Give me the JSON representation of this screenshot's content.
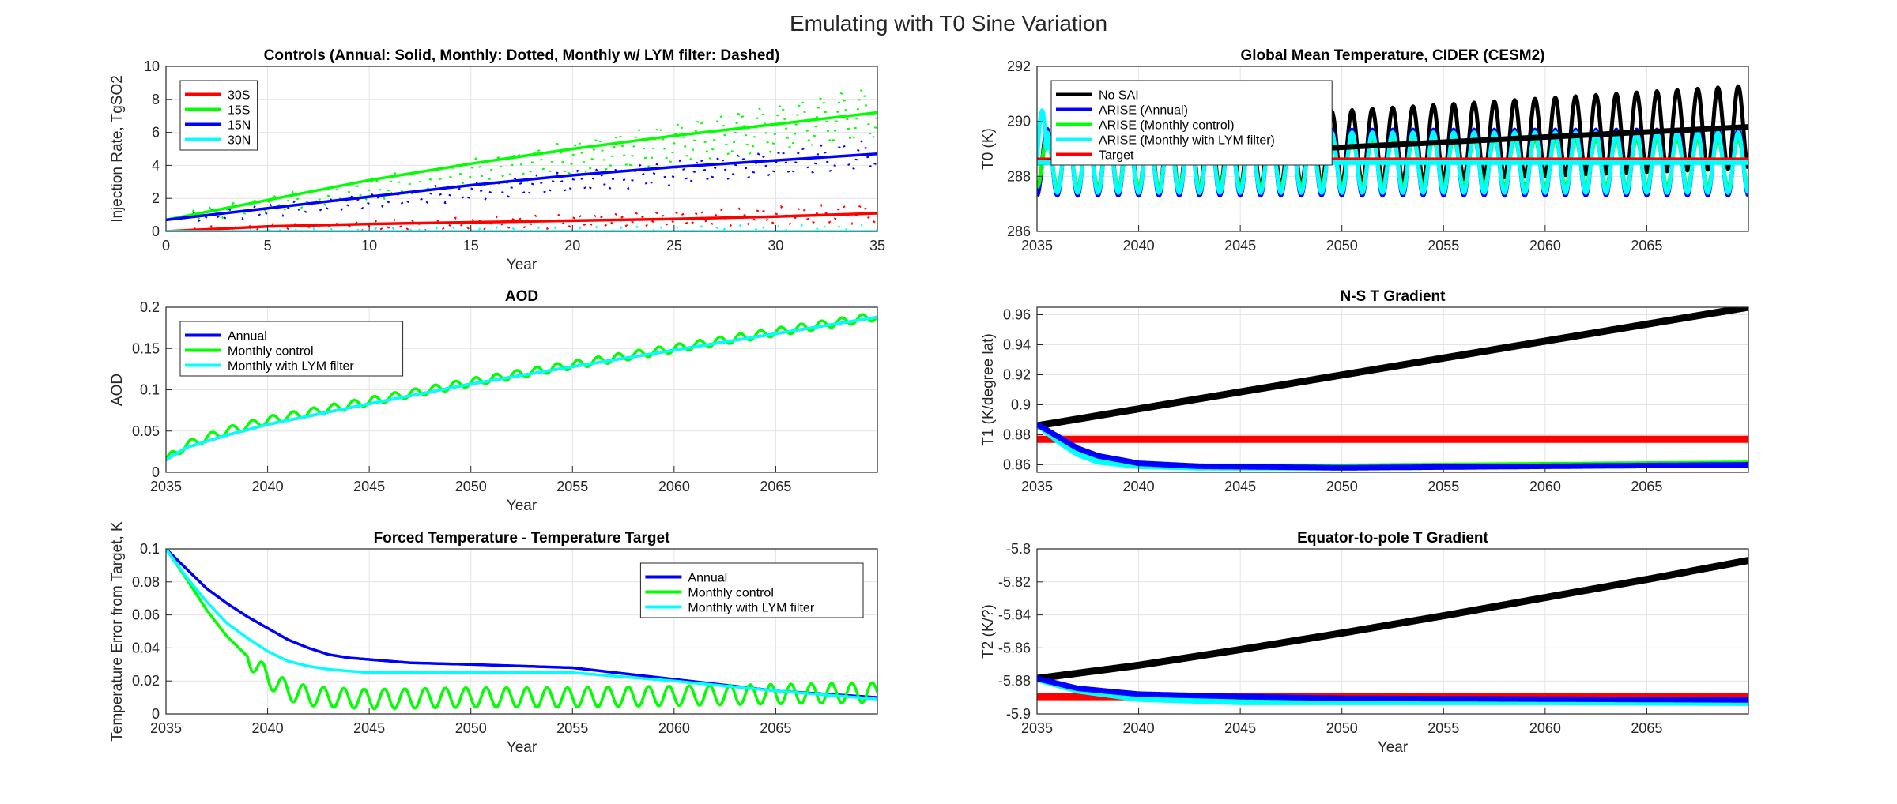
{
  "figure_title": "Emulating with T0 Sine Variation",
  "chart_data": [
    {
      "id": "controls",
      "type": "line",
      "title": "Controls (Annual: Solid, Monthly: Dotted, Monthly w/ LYM filter: Dashed)",
      "xlabel": "Year",
      "ylabel": "Injection Rate, TgSO2",
      "xlim": [
        0,
        35
      ],
      "ylim": [
        0,
        10
      ],
      "xticks": [
        0,
        5,
        10,
        15,
        20,
        25,
        30,
        35
      ],
      "yticks": [
        0,
        2,
        4,
        6,
        8,
        10
      ],
      "grid": true,
      "legend_position": "top-left",
      "legend_entries": [
        "30S",
        "15S",
        "15N",
        "30N"
      ],
      "series": [
        {
          "name": "30S",
          "color": "#ff0000",
          "style": "solid",
          "x": [
            0,
            5,
            10,
            15,
            20,
            25,
            30,
            35
          ],
          "y": [
            0.0,
            0.3,
            0.45,
            0.55,
            0.65,
            0.75,
            0.9,
            1.1
          ]
        },
        {
          "name": "15S",
          "color": "#00ff00",
          "style": "solid",
          "x": [
            0,
            5,
            10,
            15,
            20,
            25,
            30,
            35
          ],
          "y": [
            0.7,
            1.9,
            3.1,
            4.1,
            5.0,
            5.8,
            6.5,
            7.2
          ]
        },
        {
          "name": "15N",
          "color": "#0000ff",
          "style": "solid",
          "x": [
            0,
            5,
            10,
            15,
            20,
            25,
            30,
            35
          ],
          "y": [
            0.7,
            1.4,
            2.1,
            2.8,
            3.4,
            3.9,
            4.3,
            4.7
          ]
        },
        {
          "name": "30N",
          "color": "#00ffff",
          "style": "solid",
          "x": [
            0,
            35
          ],
          "y": [
            0.0,
            0.0
          ]
        },
        {
          "name": "15S",
          "color": "#00ff00",
          "style": "dotted",
          "x": [
            0,
            35
          ],
          "y_trend": [
            0.7,
            7.2
          ],
          "amplitude_trend": [
            0.3,
            1.6
          ]
        },
        {
          "name": "15N",
          "color": "#0000ff",
          "style": "dotted",
          "x": [
            0,
            35
          ],
          "y_trend": [
            0.7,
            4.7
          ],
          "amplitude_trend": [
            0.3,
            0.9
          ]
        },
        {
          "name": "30S",
          "color": "#ff0000",
          "style": "dotted",
          "x": [
            0,
            35
          ],
          "y_trend": [
            0.0,
            1.1
          ],
          "amplitude_trend": [
            0.2,
            0.6
          ]
        },
        {
          "name": "30N",
          "color": "#00ffff",
          "style": "dotted",
          "x": [
            0,
            35
          ],
          "y_trend": [
            0.0,
            0.1
          ],
          "amplitude_trend": [
            0.1,
            0.3
          ]
        }
      ]
    },
    {
      "id": "gmt",
      "type": "line",
      "title": "Global Mean Temperature, CIDER (CESM2)",
      "xlabel": "",
      "ylabel": "T0 (K)",
      "xlim": [
        2035,
        2070
      ],
      "ylim": [
        286,
        292
      ],
      "xticks": [
        2035,
        2040,
        2045,
        2050,
        2055,
        2060,
        2065
      ],
      "yticks": [
        286,
        288,
        290,
        292
      ],
      "grid": true,
      "legend_position": "top-left",
      "legend_entries": [
        "No SAI",
        "ARISE (Annual)",
        "ARISE (Monthly control)",
        "ARISE (Monthly with LYM filter)",
        "Target"
      ],
      "series": [
        {
          "name": "No SAI",
          "color": "#000000",
          "mean": [
            288.5,
            289.8
          ],
          "amplitude": [
            1.2,
            1.5
          ]
        },
        {
          "name": "ARISE (Annual)",
          "color": "#0000ff",
          "mean": [
            288.5,
            288.5
          ],
          "amplitude": [
            1.2,
            1.2
          ]
        },
        {
          "name": "ARISE (Monthly control)",
          "color": "#00ff00",
          "mean": [
            288.5,
            288.5
          ],
          "amplitude": [
            0.9,
            0.9
          ]
        },
        {
          "name": "ARISE (Monthly with LYM filter)",
          "color": "#00ffff",
          "mean": [
            288.5,
            288.5
          ],
          "amplitude": [
            1.1,
            1.1
          ],
          "start_peak": 290.4
        },
        {
          "name": "Target",
          "color": "#ff0000",
          "constant": 288.6
        }
      ]
    },
    {
      "id": "aod",
      "type": "line",
      "title": "AOD",
      "xlabel": "Year",
      "ylabel": "AOD",
      "xlim": [
        2035,
        2070
      ],
      "ylim": [
        0,
        0.2
      ],
      "xticks": [
        2035,
        2040,
        2045,
        2050,
        2055,
        2060,
        2065
      ],
      "yticks": [
        0,
        0.05,
        0.1,
        0.15,
        0.2
      ],
      "grid": true,
      "legend_position": "top-left",
      "legend_entries": [
        "Annual",
        "Monthly control",
        "Monthly with LYM filter"
      ],
      "series": [
        {
          "name": "Annual",
          "color": "#0000ff",
          "x": [
            2035,
            2036,
            2038,
            2040,
            2042,
            2045,
            2050,
            2055,
            2060,
            2065,
            2070
          ],
          "y": [
            0.015,
            0.03,
            0.045,
            0.058,
            0.068,
            0.083,
            0.107,
            0.128,
            0.148,
            0.168,
            0.188
          ]
        },
        {
          "name": "Monthly control",
          "color": "#00ff00",
          "x": [
            2035,
            2036,
            2038,
            2040,
            2042,
            2045,
            2050,
            2055,
            2060,
            2065,
            2070
          ],
          "y": [
            0.015,
            0.033,
            0.05,
            0.063,
            0.072,
            0.086,
            0.109,
            0.13,
            0.15,
            0.17,
            0.189
          ],
          "amplitude": 0.005
        },
        {
          "name": "Monthly with LYM filter",
          "color": "#00ffff",
          "x": [
            2035,
            2036,
            2038,
            2040,
            2042,
            2045,
            2050,
            2055,
            2060,
            2065,
            2070
          ],
          "y": [
            0.015,
            0.03,
            0.045,
            0.058,
            0.068,
            0.083,
            0.107,
            0.128,
            0.148,
            0.168,
            0.188
          ]
        }
      ]
    },
    {
      "id": "t1",
      "type": "line",
      "title": "N-S T Gradient",
      "xlabel": "",
      "ylabel": "T1 (K/degree lat)",
      "xlim": [
        2035,
        2070
      ],
      "ylim": [
        0.855,
        0.965
      ],
      "xticks": [
        2035,
        2040,
        2045,
        2050,
        2055,
        2060,
        2065
      ],
      "yticks": [
        0.86,
        0.88,
        0.9,
        0.92,
        0.94,
        0.96
      ],
      "grid": true,
      "series": [
        {
          "name": "No SAI",
          "color": "#000000",
          "x": [
            2035,
            2070
          ],
          "y": [
            0.886,
            0.965
          ]
        },
        {
          "name": "Target",
          "color": "#ff0000",
          "x": [
            2035,
            2070
          ],
          "y": [
            0.877,
            0.877
          ]
        },
        {
          "name": "ARISE (Monthly control)",
          "color": "#00ff00",
          "x": [
            2035,
            2036,
            2037,
            2038,
            2040,
            2043,
            2050,
            2060,
            2070
          ],
          "y": [
            0.887,
            0.878,
            0.87,
            0.864,
            0.86,
            0.859,
            0.859,
            0.86,
            0.861
          ]
        },
        {
          "name": "ARISE (Monthly with LYM filter)",
          "color": "#00ffff",
          "x": [
            2035,
            2036,
            2037,
            2038,
            2040,
            2043,
            2050,
            2060,
            2070
          ],
          "y": [
            0.887,
            0.876,
            0.867,
            0.862,
            0.859,
            0.858,
            0.858,
            0.859,
            0.86
          ]
        },
        {
          "name": "ARISE (Annual)",
          "color": "#0000ff",
          "x": [
            2035,
            2036,
            2037,
            2038,
            2040,
            2043,
            2050,
            2060,
            2070
          ],
          "y": [
            0.887,
            0.879,
            0.871,
            0.866,
            0.861,
            0.859,
            0.858,
            0.859,
            0.86
          ]
        }
      ]
    },
    {
      "id": "error",
      "type": "line",
      "title": "Forced Temperature - Temperature Target",
      "xlabel": "Year",
      "ylabel": "Temperature Error from Target, K",
      "xlim": [
        2035,
        2070
      ],
      "ylim": [
        0,
        0.1
      ],
      "xticks": [
        2035,
        2040,
        2045,
        2050,
        2055,
        2060,
        2065
      ],
      "yticks": [
        0,
        0.02,
        0.04,
        0.06,
        0.08,
        0.1
      ],
      "grid": true,
      "legend_position": "top-right",
      "legend_entries": [
        "Annual",
        "Monthly control",
        "Monthly with LYM filter"
      ],
      "series": [
        {
          "name": "Annual",
          "color": "#0000ff",
          "x": [
            2035,
            2036,
            2037,
            2038,
            2039,
            2040,
            2041,
            2042,
            2043,
            2044,
            2045,
            2047,
            2050,
            2055,
            2060,
            2065,
            2070
          ],
          "y": [
            0.1,
            0.088,
            0.076,
            0.067,
            0.059,
            0.052,
            0.045,
            0.04,
            0.036,
            0.034,
            0.033,
            0.031,
            0.03,
            0.028,
            0.021,
            0.014,
            0.01
          ]
        },
        {
          "name": "Monthly control",
          "color": "#00ff00",
          "x": [
            2035,
            2036,
            2037,
            2038,
            2039,
            2040,
            2041,
            2042,
            2043,
            2045,
            2050,
            2055,
            2060,
            2065,
            2070
          ],
          "y": [
            0.1,
            0.082,
            0.063,
            0.047,
            0.035,
            0.022,
            0.014,
            0.011,
            0.01,
            0.009,
            0.01,
            0.01,
            0.011,
            0.012,
            0.013
          ],
          "amplitude_after_2039": 0.006
        },
        {
          "name": "Monthly with LYM filter",
          "color": "#00ffff",
          "x": [
            2035,
            2036,
            2037,
            2038,
            2039,
            2040,
            2041,
            2042,
            2043,
            2045,
            2050,
            2055,
            2060,
            2065,
            2070
          ],
          "y": [
            0.1,
            0.083,
            0.068,
            0.055,
            0.046,
            0.038,
            0.032,
            0.029,
            0.027,
            0.025,
            0.025,
            0.025,
            0.02,
            0.014,
            0.009
          ]
        }
      ]
    },
    {
      "id": "t2",
      "type": "line",
      "title": "Equator-to-pole T Gradient",
      "xlabel": "Year",
      "ylabel": "T2 (K/?)",
      "xlim": [
        2035,
        2070
      ],
      "ylim": [
        -5.9,
        -5.8
      ],
      "xticks": [
        2035,
        2040,
        2045,
        2050,
        2055,
        2060,
        2065
      ],
      "yticks": [
        -5.9,
        -5.88,
        -5.86,
        -5.84,
        -5.82,
        -5.8
      ],
      "grid": true,
      "series": [
        {
          "name": "No SAI",
          "color": "#000000",
          "x": [
            2035,
            2040,
            2045,
            2050,
            2055,
            2060,
            2065,
            2070
          ],
          "y": [
            -5.8785,
            -5.8705,
            -5.861,
            -5.851,
            -5.8405,
            -5.8295,
            -5.8185,
            -5.807
          ]
        },
        {
          "name": "Target",
          "color": "#ff0000",
          "x": [
            2035,
            2070
          ],
          "y": [
            -5.8895,
            -5.8895
          ]
        },
        {
          "name": "ARISE (Monthly control)",
          "color": "#00ff00",
          "x": [
            2035,
            2037,
            2040,
            2045,
            2050,
            2060,
            2070
          ],
          "y": [
            -5.879,
            -5.886,
            -5.89,
            -5.892,
            -5.892,
            -5.892,
            -5.892
          ]
        },
        {
          "name": "ARISE (Monthly with LYM filter)",
          "color": "#00ffff",
          "x": [
            2035,
            2037,
            2040,
            2045,
            2050,
            2060,
            2070
          ],
          "y": [
            -5.879,
            -5.886,
            -5.891,
            -5.893,
            -5.893,
            -5.893,
            -5.8935
          ]
        },
        {
          "name": "ARISE (Annual)",
          "color": "#0000ff",
          "x": [
            2035,
            2037,
            2040,
            2045,
            2050,
            2060,
            2070
          ],
          "y": [
            -5.8785,
            -5.8845,
            -5.888,
            -5.8895,
            -5.8905,
            -5.891,
            -5.8915
          ]
        }
      ]
    }
  ]
}
